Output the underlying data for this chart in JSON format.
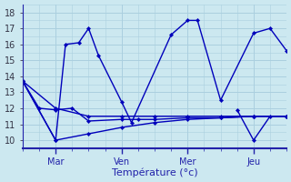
{
  "xlabel": "Température (°c)",
  "background_color": "#cce8f0",
  "grid_color": "#aacfdf",
  "line_color": "#0000bb",
  "ylim": [
    9.5,
    18.5
  ],
  "yticks": [
    10,
    11,
    12,
    13,
    14,
    15,
    16,
    17,
    18
  ],
  "xtick_positions": [
    1,
    3,
    5,
    7
  ],
  "xtick_labels": [
    "Mar",
    "Ven",
    "Mer",
    "Jeu"
  ],
  "xmin": 0,
  "xmax": 8,
  "lines": [
    {
      "x": [
        0,
        0.5,
        1,
        1.5,
        2,
        3,
        3.5,
        4,
        5,
        6,
        7,
        8
      ],
      "y": [
        13.7,
        12.0,
        11.9,
        12.0,
        11.2,
        11.3,
        11.3,
        11.3,
        11.4,
        11.4,
        11.5,
        11.5
      ]
    },
    {
      "x": [
        0,
        1,
        1.3,
        1.7,
        2.0,
        2.3,
        3,
        3.3,
        4.5,
        5,
        5.3,
        6,
        7,
        7.5,
        8
      ],
      "y": [
        13.7,
        10.0,
        16.0,
        16.1,
        17.0,
        15.3,
        12.4,
        11.1,
        16.6,
        17.5,
        17.5,
        12.5,
        16.7,
        17.0,
        15.6
      ]
    },
    {
      "x": [
        0,
        1,
        2,
        3,
        4,
        5,
        6,
        7,
        8
      ],
      "y": [
        13.7,
        12.0,
        11.5,
        11.5,
        11.5,
        11.5,
        11.5,
        11.5,
        11.5
      ]
    },
    {
      "x": [
        0,
        1,
        2,
        3,
        4,
        5,
        6,
        7,
        8
      ],
      "y": [
        13.7,
        10.0,
        10.4,
        10.8,
        11.1,
        11.3,
        11.4,
        11.5,
        11.5
      ]
    },
    {
      "x": [
        6.5,
        7,
        7.5,
        8
      ],
      "y": [
        11.9,
        10.0,
        11.5,
        11.5
      ]
    }
  ]
}
